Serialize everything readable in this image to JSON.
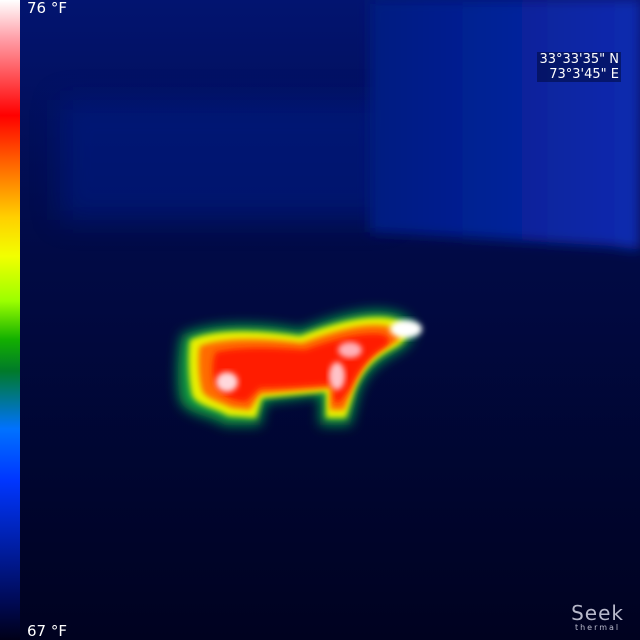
{
  "scale": {
    "max_label": "76 °F",
    "min_label": "67 °F"
  },
  "gps": {
    "latitude": "33°33'35\" N",
    "longitude": "73°3'45\" E"
  },
  "branding": {
    "name": "Seek",
    "subtitle": "thermal"
  },
  "colors": {
    "background": "#000018",
    "cool_wall": "#0a2aa8",
    "hot_core": "#ffffff",
    "warm_body": "#ff2000",
    "mid_body": "#ffd000",
    "edge_body": "#13b000"
  }
}
